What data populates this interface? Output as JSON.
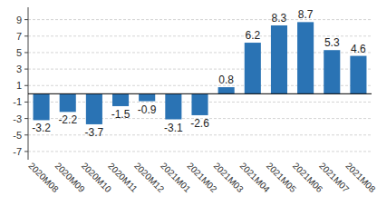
{
  "chart_data": {
    "type": "bar",
    "categories": [
      "2020M08",
      "2020M09",
      "2020M10",
      "2020M11",
      "2020M12",
      "2021M01",
      "2021M02",
      "2021M03",
      "2021M04",
      "2021M05",
      "2021M06",
      "2021M07",
      "2021M08"
    ],
    "values": [
      -3.2,
      -2.2,
      -3.7,
      -1.5,
      -0.9,
      -3.1,
      -2.6,
      0.8,
      6.2,
      8.3,
      8.7,
      5.3,
      4.6
    ],
    "color": "#2a73b4",
    "ylim": [
      -8,
      10.5
    ],
    "yticks": [
      -7,
      -5,
      -3,
      -1,
      1,
      3,
      5,
      7,
      9
    ],
    "grid": true,
    "data_labels": true
  }
}
